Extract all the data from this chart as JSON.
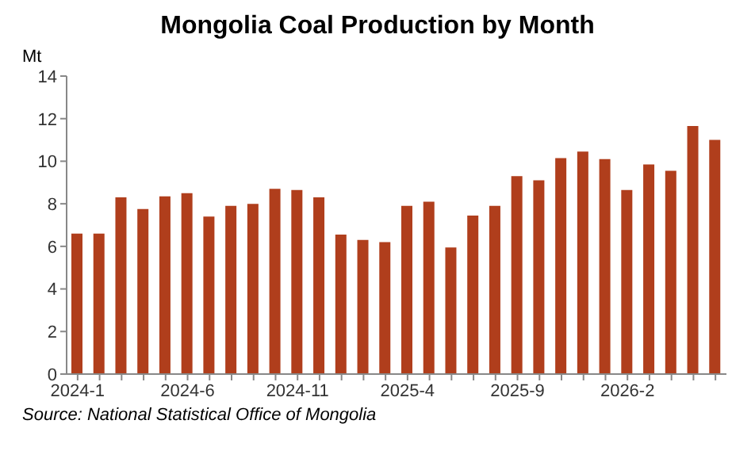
{
  "chart_data": {
    "type": "bar",
    "title": "Mongolia Coal Production by Month",
    "ylabel": "Mt",
    "categories": [
      "2024-1",
      null,
      null,
      null,
      null,
      "2024-6",
      null,
      null,
      null,
      null,
      "2024-11",
      null,
      null,
      null,
      null,
      "2025-4",
      null,
      null,
      null,
      null,
      "2025-9",
      null,
      null,
      null,
      null,
      "2026-2",
      null,
      null,
      null,
      null
    ],
    "values": [
      6.6,
      6.6,
      8.3,
      7.75,
      8.35,
      8.5,
      7.4,
      7.9,
      8.0,
      8.7,
      8.65,
      8.3,
      6.55,
      6.3,
      6.2,
      7.9,
      8.1,
      5.95,
      7.45,
      7.9,
      9.3,
      9.1,
      10.15,
      10.45,
      10.1,
      8.65,
      9.85,
      9.55,
      11.65,
      11.0
    ],
    "color": "#b03e1c",
    "ylim": [
      0,
      14
    ],
    "yticks": [
      0,
      2,
      4,
      6,
      8,
      10,
      12,
      14
    ],
    "grid": false,
    "annotations": [
      "Source: National Statistical Office of Mongolia"
    ]
  }
}
